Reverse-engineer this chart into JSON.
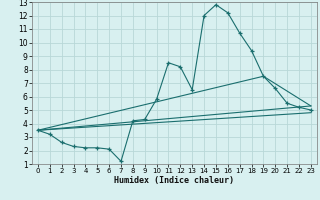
{
  "xlabel": "Humidex (Indice chaleur)",
  "background_color": "#d8f0f0",
  "grid_color": "#b8d8d8",
  "line_color": "#1a6e6e",
  "xlim": [
    -0.5,
    23.5
  ],
  "ylim": [
    1,
    13
  ],
  "xticks": [
    0,
    1,
    2,
    3,
    4,
    5,
    6,
    7,
    8,
    9,
    10,
    11,
    12,
    13,
    14,
    15,
    16,
    17,
    18,
    19,
    20,
    21,
    22,
    23
  ],
  "yticks": [
    1,
    2,
    3,
    4,
    5,
    6,
    7,
    8,
    9,
    10,
    11,
    12,
    13
  ],
  "line1_x": [
    0,
    1,
    2,
    3,
    4,
    5,
    6,
    7,
    8,
    9,
    10,
    11,
    12,
    13,
    14,
    15,
    16,
    17,
    18,
    19,
    20,
    21,
    22,
    23
  ],
  "line1_y": [
    3.5,
    3.2,
    2.6,
    2.3,
    2.2,
    2.2,
    2.1,
    1.2,
    4.2,
    4.3,
    5.8,
    8.5,
    8.2,
    6.5,
    12.0,
    12.8,
    12.2,
    10.7,
    9.4,
    7.5,
    6.6,
    5.5,
    5.2,
    5.0
  ],
  "line2_x": [
    0,
    23
  ],
  "line2_y": [
    3.5,
    5.3
  ],
  "line3_x": [
    0,
    23
  ],
  "line3_y": [
    3.5,
    4.8
  ],
  "line4_x": [
    0,
    19,
    23
  ],
  "line4_y": [
    3.5,
    7.5,
    5.3
  ]
}
